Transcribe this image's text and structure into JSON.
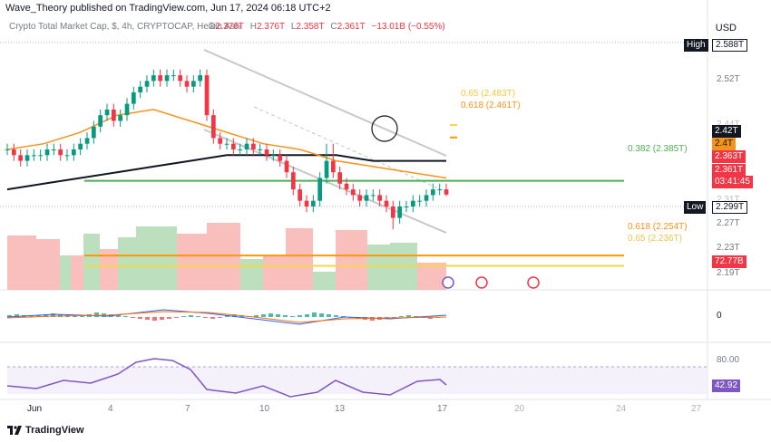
{
  "header": {
    "publisher": "Wave_Theory published on TradingView.com, Jun 17, 2024 06:18 UTC+2",
    "symbol": "Crypto Total Market Cap, $, 4h, CRYPTOCAP, Heikin Ashi",
    "ohlc": [
      {
        "k": "O",
        "v": "2.376T"
      },
      {
        "k": "H",
        "v": "2.376T"
      },
      {
        "k": "L",
        "v": "2.358T"
      },
      {
        "k": "C",
        "v": "2.361T"
      },
      {
        "k": "",
        "v": "−13.01B (−0.55%)"
      }
    ],
    "currency": "USD"
  },
  "price_axis": {
    "ticks": [
      "2.52T",
      "2.44T",
      "2.31T",
      "2.27T",
      "2.23T",
      "2.19T"
    ],
    "high_label": "High",
    "high_value": "2.588T",
    "low_label": "Low",
    "low_value": "2.299T",
    "tag_black": "2.42T",
    "tag_orange": "2.4T",
    "tag_price": "2.363T",
    "tag_close": "2.361T",
    "tag_timer": "03:41:45",
    "tag_volume": "72.77B"
  },
  "fib_labels": {
    "f065_top": "0.65 (2.483T)",
    "f0618_top": "0.618 (2.461T)",
    "f0382": "0.382 (2.385T)",
    "f0618_bot": "0.618 (2.254T)",
    "f065_bot": "0.65 (2.236T)"
  },
  "macd_axis": {
    "zero": "0"
  },
  "rsi_axis": {
    "level": "80.00",
    "value": "42.92"
  },
  "time_axis": [
    "Jun",
    "4",
    "7",
    "10",
    "13",
    "17",
    "20",
    "24",
    "27"
  ],
  "footer": {
    "brand": "TradingView"
  },
  "colors": {
    "up": "#089981",
    "down": "#f23645",
    "ema": "#f7931a",
    "ma200": "#131722",
    "fib_green": "#4caf50",
    "fib_orange": "#ff9800",
    "fib_yellow": "#f5d742",
    "rsi": "#7e57c2",
    "channel": "#c8c8c8"
  },
  "chart_data": {
    "type": "candlestick",
    "title": "Crypto Total Market Cap, $, 4h, CRYPTOCAP, Heikin Ashi",
    "unit": "T USD",
    "ylim": [
      2.17,
      2.6
    ],
    "candles_approx": [
      [
        2.44,
        2.45,
        2.43,
        2.44
      ],
      [
        2.44,
        2.45,
        2.42,
        2.43
      ],
      [
        2.43,
        2.44,
        2.41,
        2.42
      ],
      [
        2.42,
        2.44,
        2.41,
        2.43
      ],
      [
        2.43,
        2.44,
        2.42,
        2.43
      ],
      [
        2.43,
        2.44,
        2.42,
        2.43
      ],
      [
        2.43,
        2.45,
        2.42,
        2.44
      ],
      [
        2.44,
        2.45,
        2.43,
        2.44
      ],
      [
        2.44,
        2.45,
        2.42,
        2.43
      ],
      [
        2.43,
        2.44,
        2.42,
        2.43
      ],
      [
        2.43,
        2.45,
        2.42,
        2.44
      ],
      [
        2.44,
        2.46,
        2.43,
        2.45
      ],
      [
        2.45,
        2.47,
        2.44,
        2.46
      ],
      [
        2.46,
        2.49,
        2.45,
        2.48
      ],
      [
        2.48,
        2.51,
        2.47,
        2.5
      ],
      [
        2.5,
        2.52,
        2.49,
        2.51
      ],
      [
        2.51,
        2.52,
        2.48,
        2.49
      ],
      [
        2.49,
        2.51,
        2.48,
        2.5
      ],
      [
        2.5,
        2.53,
        2.49,
        2.52
      ],
      [
        2.52,
        2.55,
        2.51,
        2.54
      ],
      [
        2.54,
        2.56,
        2.53,
        2.55
      ],
      [
        2.55,
        2.57,
        2.54,
        2.56
      ],
      [
        2.56,
        2.58,
        2.55,
        2.57
      ],
      [
        2.57,
        2.58,
        2.55,
        2.56
      ],
      [
        2.56,
        2.58,
        2.55,
        2.57
      ],
      [
        2.57,
        2.58,
        2.56,
        2.57
      ],
      [
        2.57,
        2.58,
        2.55,
        2.56
      ],
      [
        2.56,
        2.57,
        2.54,
        2.55
      ],
      [
        2.55,
        2.57,
        2.54,
        2.56
      ],
      [
        2.56,
        2.58,
        2.55,
        2.57
      ],
      [
        2.57,
        2.58,
        2.49,
        2.5
      ],
      [
        2.5,
        2.51,
        2.45,
        2.46
      ],
      [
        2.46,
        2.47,
        2.44,
        2.45
      ],
      [
        2.45,
        2.46,
        2.44,
        2.45
      ],
      [
        2.45,
        2.46,
        2.43,
        2.44
      ],
      [
        2.44,
        2.45,
        2.43,
        2.44
      ],
      [
        2.44,
        2.46,
        2.43,
        2.45
      ],
      [
        2.45,
        2.46,
        2.43,
        2.44
      ],
      [
        2.44,
        2.45,
        2.43,
        2.44
      ],
      [
        2.44,
        2.45,
        2.42,
        2.43
      ],
      [
        2.43,
        2.44,
        2.42,
        2.43
      ],
      [
        2.43,
        2.44,
        2.41,
        2.42
      ],
      [
        2.42,
        2.43,
        2.39,
        2.4
      ],
      [
        2.4,
        2.41,
        2.36,
        2.37
      ],
      [
        2.37,
        2.38,
        2.34,
        2.35
      ],
      [
        2.35,
        2.36,
        2.33,
        2.34
      ],
      [
        2.34,
        2.36,
        2.33,
        2.35
      ],
      [
        2.35,
        2.4,
        2.34,
        2.39
      ],
      [
        2.39,
        2.45,
        2.38,
        2.42
      ],
      [
        2.42,
        2.45,
        2.39,
        2.4
      ],
      [
        2.4,
        2.41,
        2.37,
        2.38
      ],
      [
        2.38,
        2.39,
        2.36,
        2.37
      ],
      [
        2.37,
        2.38,
        2.35,
        2.36
      ],
      [
        2.36,
        2.37,
        2.34,
        2.35
      ],
      [
        2.35,
        2.37,
        2.34,
        2.36
      ],
      [
        2.36,
        2.37,
        2.35,
        2.36
      ],
      [
        2.36,
        2.37,
        2.34,
        2.35
      ],
      [
        2.35,
        2.36,
        2.33,
        2.34
      ],
      [
        2.34,
        2.35,
        2.3,
        2.32
      ],
      [
        2.32,
        2.35,
        2.31,
        2.34
      ],
      [
        2.34,
        2.35,
        2.33,
        2.34
      ],
      [
        2.34,
        2.36,
        2.33,
        2.35
      ],
      [
        2.35,
        2.36,
        2.34,
        2.35
      ],
      [
        2.35,
        2.37,
        2.34,
        2.36
      ],
      [
        2.36,
        2.38,
        2.35,
        2.37
      ],
      [
        2.37,
        2.38,
        2.36,
        2.37
      ],
      [
        2.37,
        2.38,
        2.358,
        2.361
      ]
    ],
    "ema_approx": [
      2.44,
      2.45,
      2.47,
      2.5,
      2.51,
      2.49,
      2.47,
      2.45,
      2.44,
      2.42,
      2.41,
      2.4,
      2.39
    ],
    "ma200_approx": [
      2.37,
      2.38,
      2.39,
      2.4,
      2.41,
      2.42,
      2.43,
      2.43,
      2.43,
      2.43,
      2.42,
      2.42,
      2.42
    ],
    "fib_levels": [
      {
        "label": "0.65 (2.483T)",
        "value": 2.483
      },
      {
        "label": "0.618 (2.461T)",
        "value": 2.461
      },
      {
        "label": "0.382 (2.385T)",
        "value": 2.385
      },
      {
        "label": "0.618 (2.254T)",
        "value": 2.254
      },
      {
        "label": "0.65 (2.236T)",
        "value": 2.236
      }
    ],
    "volume_last": "72.77B",
    "rsi_last": 42.92
  }
}
